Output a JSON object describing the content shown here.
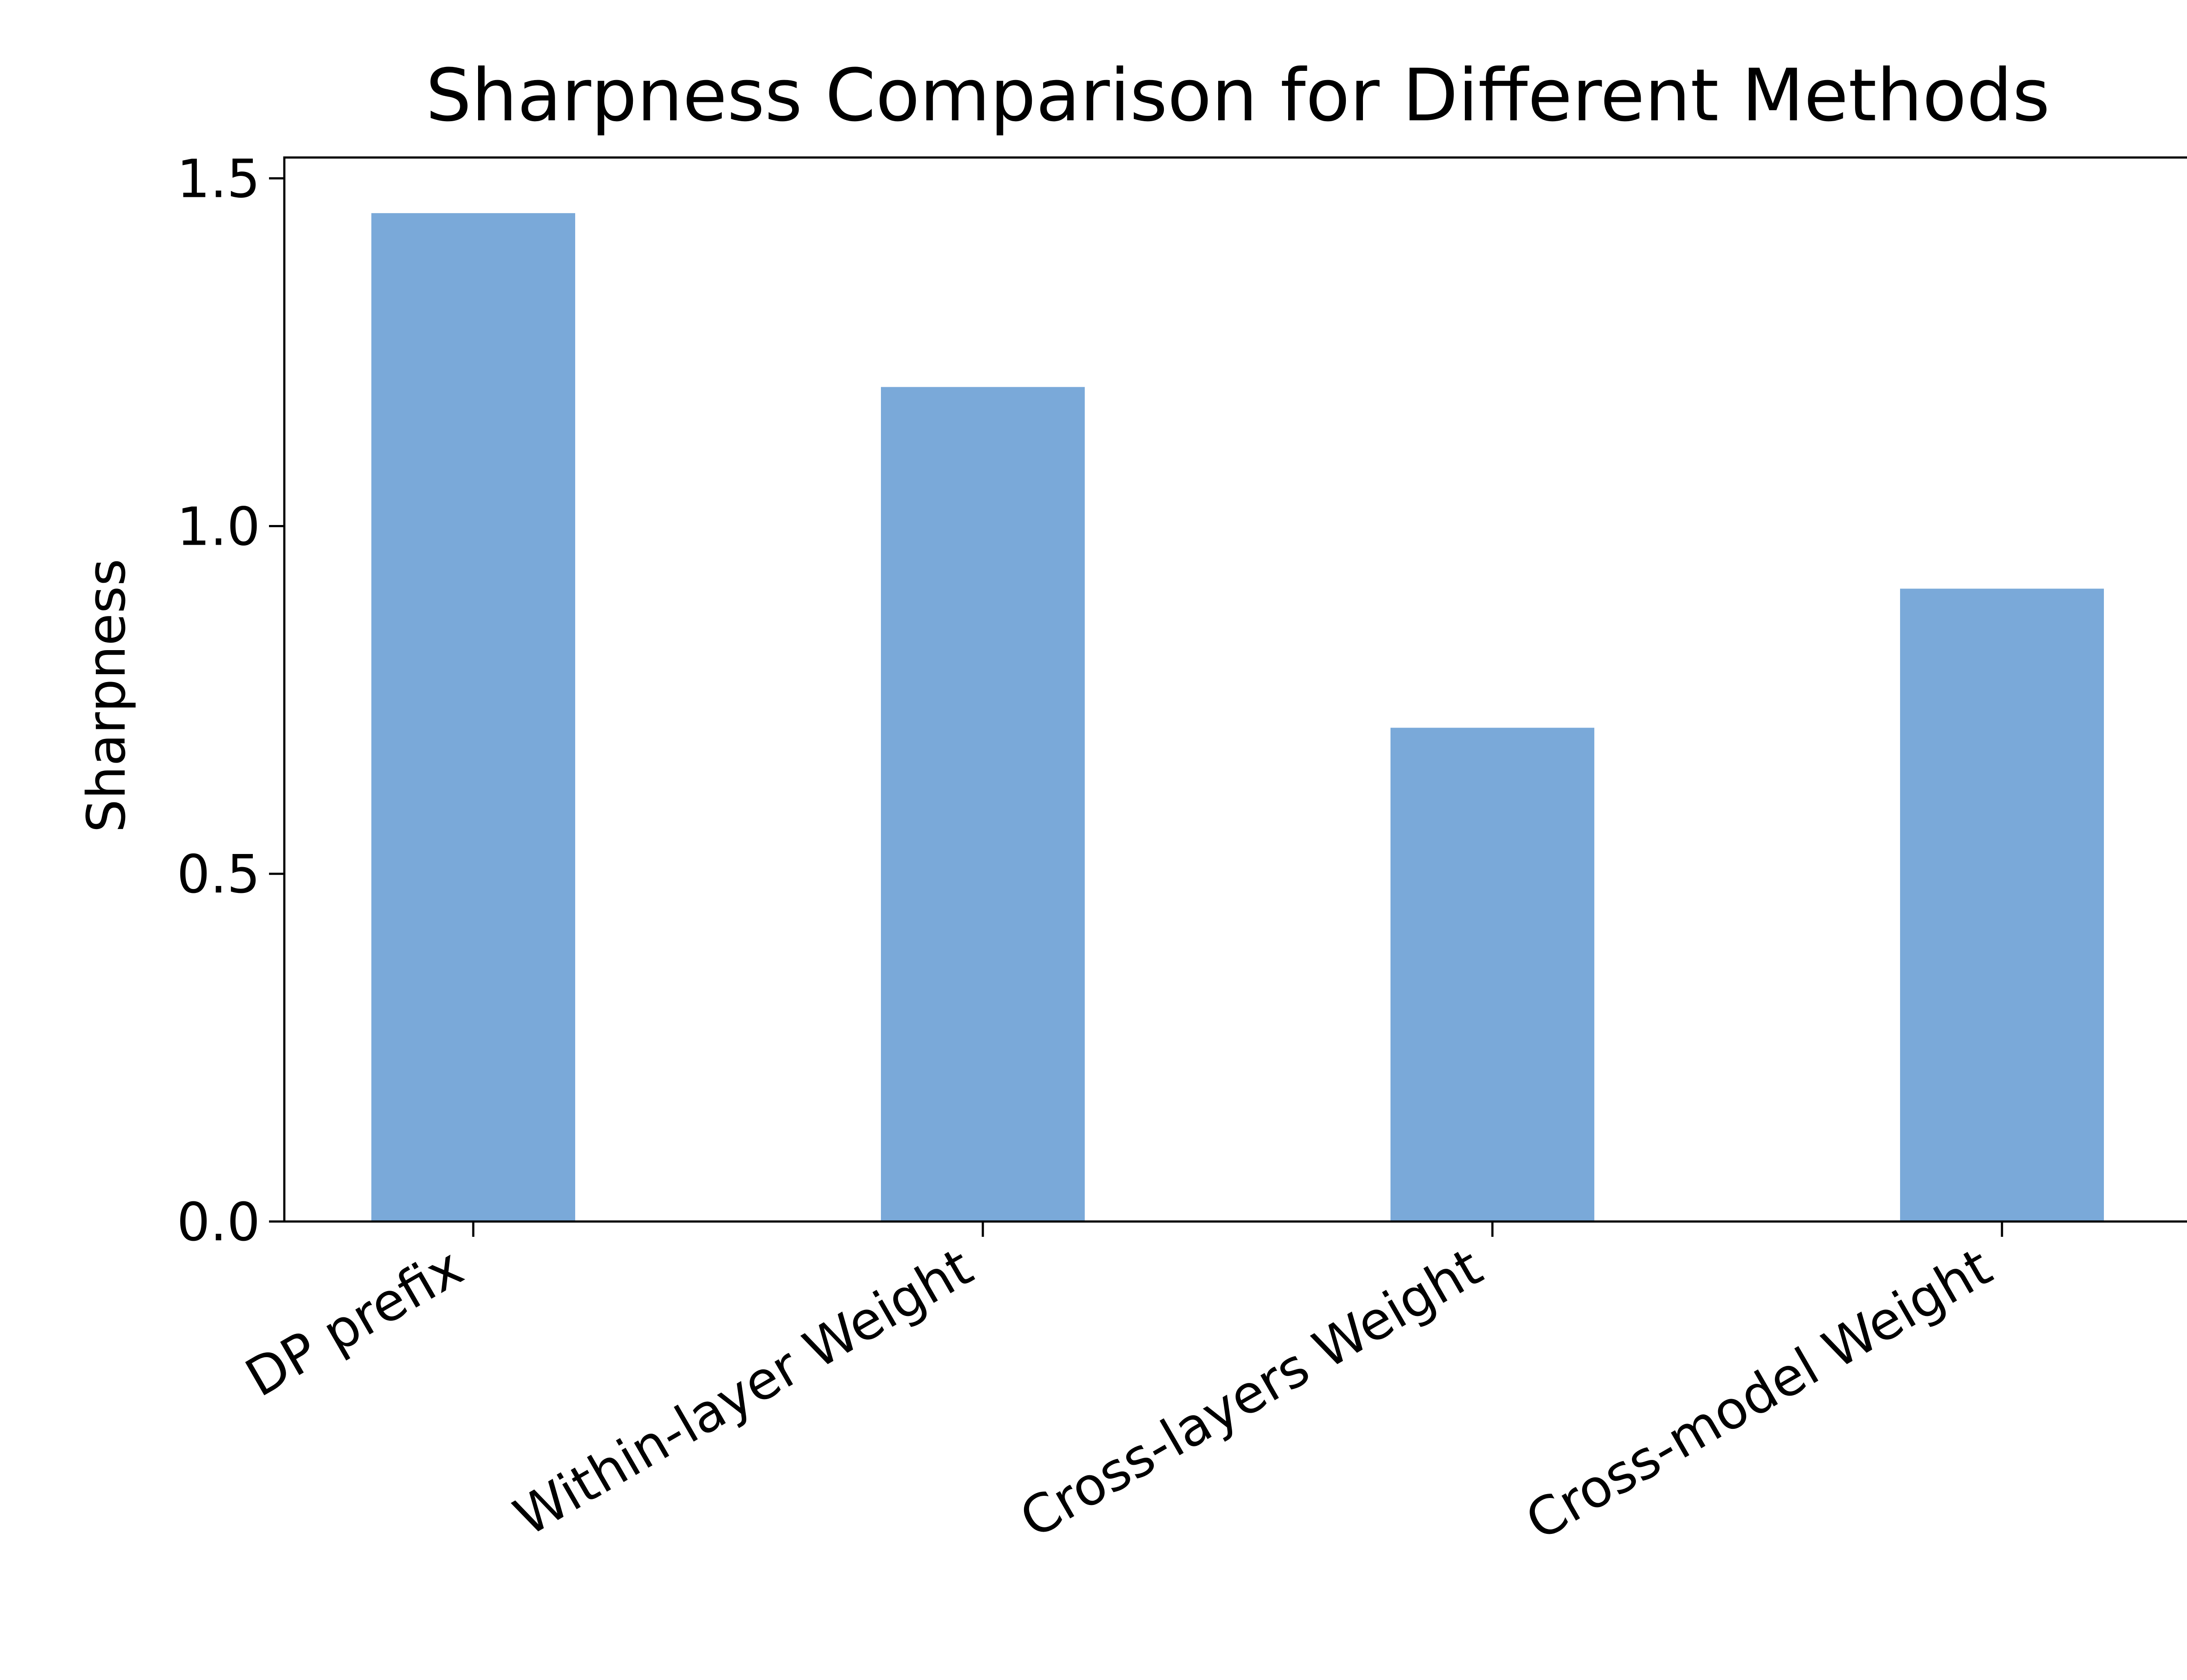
{
  "chart_data": {
    "type": "bar",
    "title": "Sharpness Comparison for Different Methods",
    "xlabel": "",
    "ylabel": "Sharpness",
    "categories": [
      "DP prefix",
      "Within-layer Weight",
      "Cross-layers Weight",
      "Cross-model Weight"
    ],
    "values": [
      1.45,
      1.2,
      0.71,
      0.91
    ],
    "ylim": [
      0,
      1.53
    ],
    "yticks": [
      0.0,
      0.5,
      1.0,
      1.5
    ],
    "ytick_labels": [
      "0.0",
      "0.5",
      "1.0",
      "1.5"
    ],
    "grid": false,
    "legend": "none",
    "bar_color": "#7aa9d9"
  }
}
